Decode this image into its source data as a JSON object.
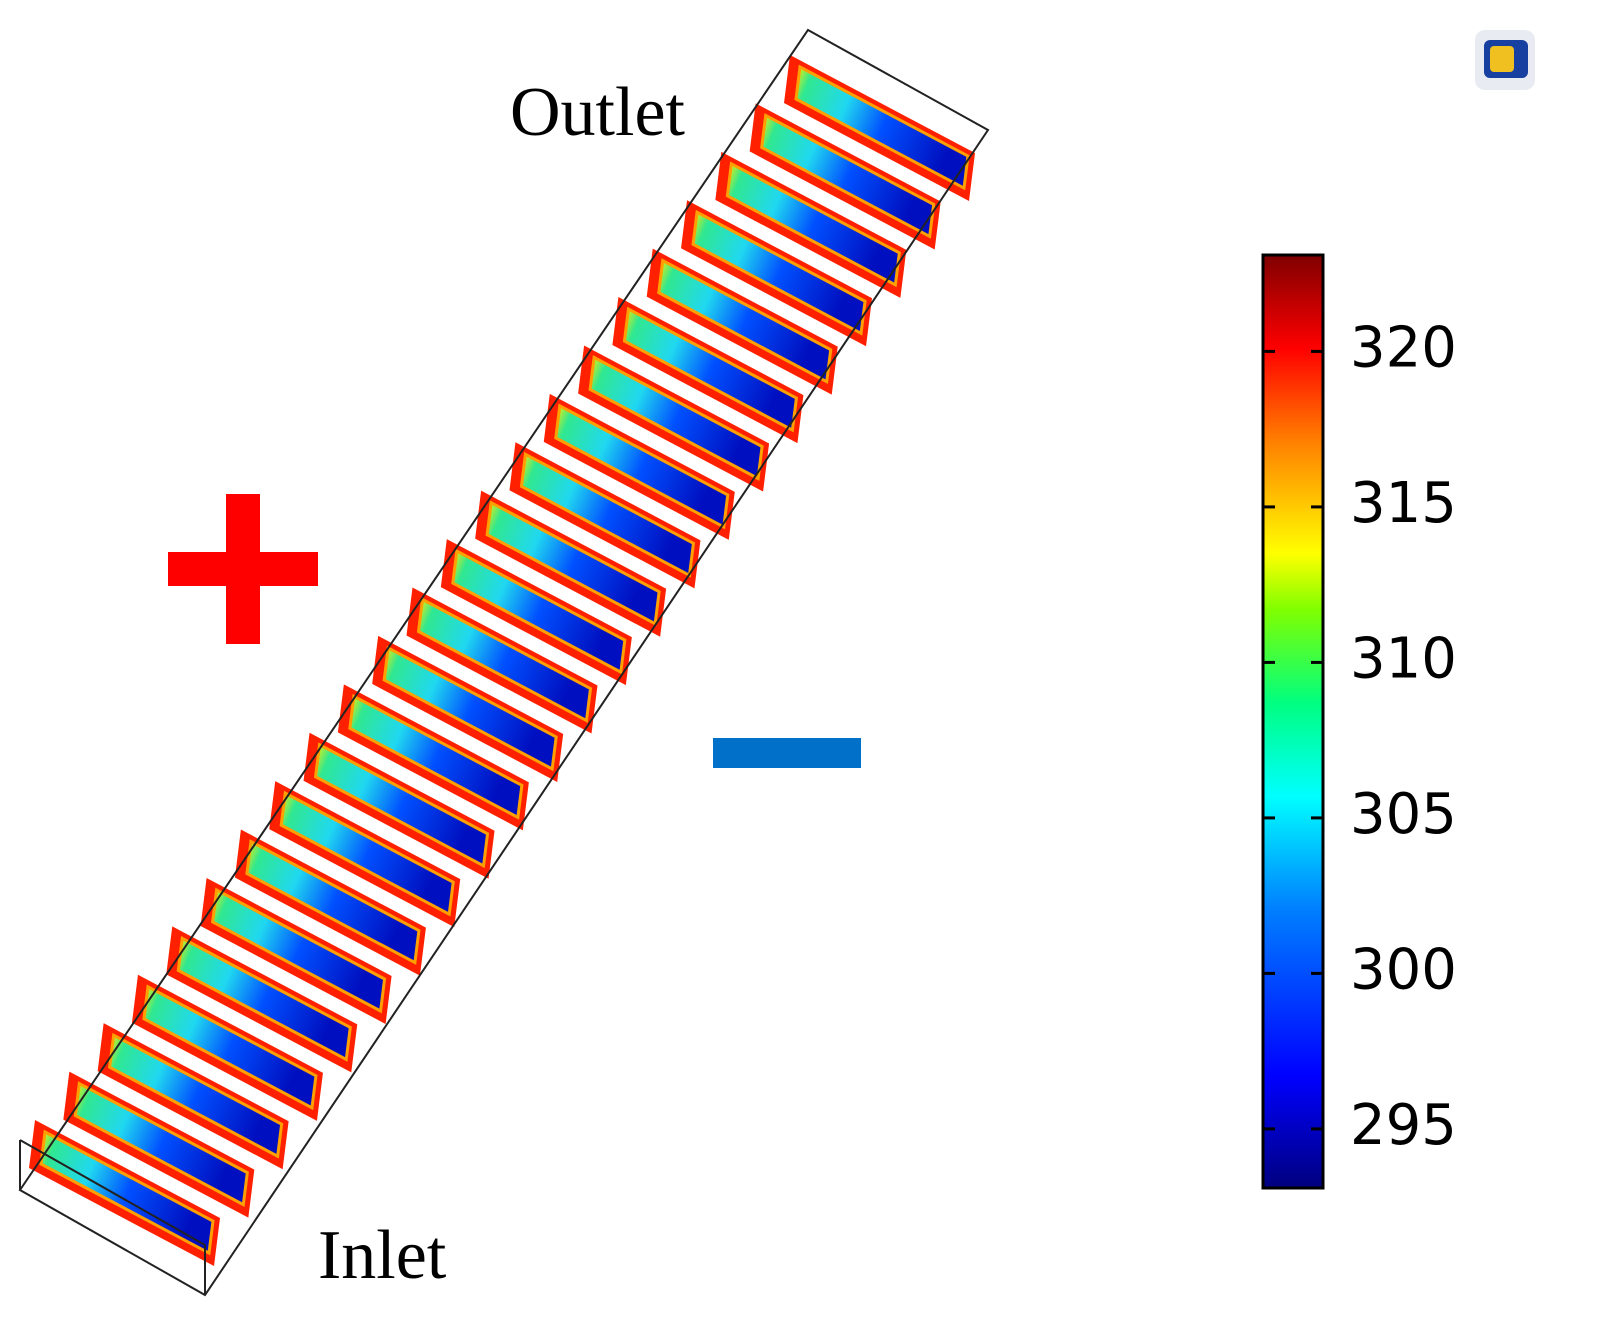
{
  "labels": {
    "outlet": "Outlet",
    "inlet": "Inlet"
  },
  "colorbar": {
    "clim": [
      293.1,
      323.1
    ],
    "ticks": [
      295,
      300,
      305,
      310,
      315,
      320
    ]
  }
}
